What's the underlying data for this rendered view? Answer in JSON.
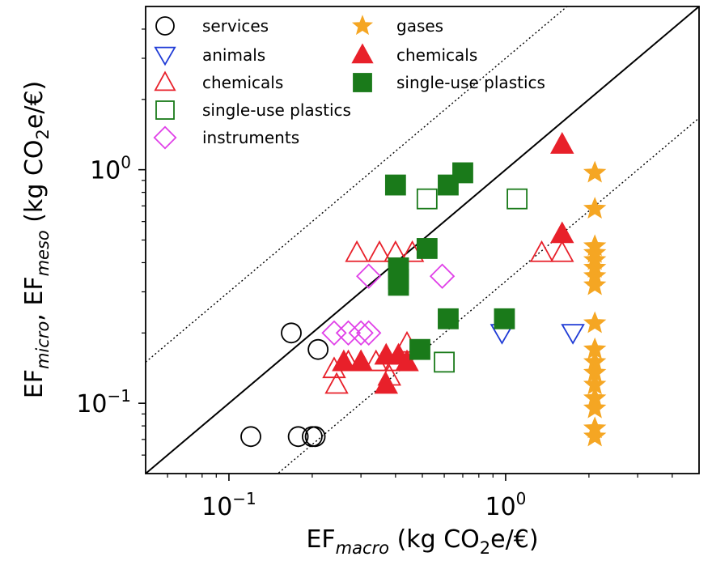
{
  "chart_data": {
    "type": "scatter",
    "x_scale": "log",
    "y_scale": "log",
    "xlim": [
      0.05,
      5.0
    ],
    "ylim": [
      0.05,
      5.0
    ],
    "xlabel": {
      "main": "EF",
      "sub": "macro",
      "unit_prefix": " (kg CO",
      "unit_sub": "2",
      "unit_suffix": "e/€)"
    },
    "ylabel": {
      "main1": "EF",
      "sub1": "micro",
      "sep": ", EF",
      "sub2": "meso",
      "unit_prefix": " (kg CO",
      "unit_sub": "2",
      "unit_suffix": "e/€)"
    },
    "x_ticks": [
      {
        "value": 0.1,
        "base": "10",
        "exp": "−1"
      },
      {
        "value": 1.0,
        "base": "10",
        "exp": "0"
      }
    ],
    "y_ticks": [
      {
        "value": 0.1,
        "base": "10",
        "exp": "−1"
      },
      {
        "value": 1.0,
        "base": "10",
        "exp": "0"
      }
    ],
    "reference_lines": [
      {
        "kind": "identity",
        "factor": 1.0,
        "style": "solid"
      },
      {
        "kind": "factor",
        "factor": 3.0,
        "style": "dotted"
      },
      {
        "kind": "factor",
        "factor": 0.333,
        "style": "dotted"
      }
    ],
    "grid": false,
    "legend_placement": "top-left (two columns)",
    "series": [
      {
        "name": "services",
        "marker": "circle-open",
        "color": "#000000",
        "points": [
          [
            0.168,
            0.2
          ],
          [
            0.21,
            0.17
          ],
          [
            0.12,
            0.072
          ],
          [
            0.178,
            0.072
          ],
          [
            0.2,
            0.072
          ],
          [
            0.205,
            0.072
          ]
        ]
      },
      {
        "name": "animals",
        "marker": "triangle-down-open",
        "color": "#1f3bd6",
        "points": [
          [
            0.97,
            0.2
          ],
          [
            1.75,
            0.2
          ]
        ]
      },
      {
        "name": "chemicals",
        "marker": "triangle-up-open",
        "color": "#e8202a",
        "points": [
          [
            0.29,
            0.44
          ],
          [
            0.35,
            0.44
          ],
          [
            0.4,
            0.44
          ],
          [
            0.46,
            0.44
          ],
          [
            1.35,
            0.44
          ],
          [
            1.6,
            0.44
          ],
          [
            0.24,
            0.14
          ],
          [
            0.27,
            0.15
          ],
          [
            0.3,
            0.15
          ],
          [
            0.34,
            0.15
          ],
          [
            0.4,
            0.15
          ],
          [
            0.44,
            0.18
          ],
          [
            0.245,
            0.12
          ],
          [
            0.38,
            0.13
          ]
        ]
      },
      {
        "name": "single-use plastics",
        "marker": "square-open",
        "color": "#1a7a1a",
        "points": [
          [
            0.52,
            0.75
          ],
          [
            1.1,
            0.75
          ],
          [
            0.6,
            0.15
          ]
        ]
      },
      {
        "name": "instruments",
        "marker": "diamond-open",
        "color": "#e040e8",
        "points": [
          [
            0.32,
            0.35
          ],
          [
            0.59,
            0.35
          ],
          [
            0.24,
            0.2
          ],
          [
            0.27,
            0.2
          ],
          [
            0.3,
            0.2
          ],
          [
            0.32,
            0.2
          ]
        ]
      },
      {
        "name": "gases",
        "marker": "star-filled",
        "color": "#f5a623",
        "points": [
          [
            2.1,
            0.97
          ],
          [
            2.1,
            0.68
          ],
          [
            2.1,
            0.47
          ],
          [
            2.1,
            0.44
          ],
          [
            2.1,
            0.41
          ],
          [
            2.1,
            0.38
          ],
          [
            2.1,
            0.35
          ],
          [
            2.1,
            0.32
          ],
          [
            2.1,
            0.22
          ],
          [
            2.1,
            0.17
          ],
          [
            2.1,
            0.15
          ],
          [
            2.1,
            0.135
          ],
          [
            2.1,
            0.12
          ],
          [
            2.1,
            0.105
          ],
          [
            2.1,
            0.095
          ],
          [
            2.1,
            0.078
          ],
          [
            2.1,
            0.072
          ]
        ]
      },
      {
        "name": "chemicals",
        "marker": "triangle-up-filled",
        "color": "#e8202a",
        "points": [
          [
            1.6,
            1.28
          ],
          [
            1.6,
            0.53
          ],
          [
            0.26,
            0.15
          ],
          [
            0.3,
            0.15
          ],
          [
            0.37,
            0.16
          ],
          [
            0.41,
            0.16
          ],
          [
            0.44,
            0.15
          ],
          [
            0.37,
            0.12
          ]
        ]
      },
      {
        "name": "single-use plastics",
        "marker": "square-filled",
        "color": "#1a7a1a",
        "points": [
          [
            0.4,
            0.86
          ],
          [
            0.62,
            0.86
          ],
          [
            0.7,
            0.97
          ],
          [
            0.52,
            0.46
          ],
          [
            0.41,
            0.38
          ],
          [
            0.41,
            0.34
          ],
          [
            0.41,
            0.32
          ],
          [
            0.62,
            0.23
          ],
          [
            0.99,
            0.23
          ],
          [
            0.49,
            0.17
          ]
        ]
      }
    ]
  }
}
